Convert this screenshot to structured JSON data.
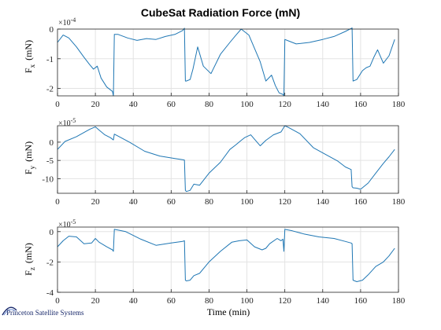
{
  "chart_data": {
    "type": "line",
    "title": "CubeSat Radiation Force (mN)",
    "xlabel": "Time (min)",
    "xlim": [
      0,
      180
    ],
    "xticks": [
      "0",
      "20",
      "40",
      "60",
      "80",
      "100",
      "120",
      "140",
      "160",
      "180"
    ],
    "color": "#1f77b4",
    "grid": true,
    "panels": [
      {
        "ylabel_main": "F",
        "ylabel_sub": "x",
        "ylabel_unit": "(mN)",
        "exponent_base": "×10",
        "exponent_power": "-4",
        "ylim": [
          -2.25,
          0
        ],
        "yticks": [
          0,
          -1,
          -2
        ],
        "ytick_labels": [
          "0",
          "-1",
          "-2"
        ],
        "x": [
          0,
          3,
          6,
          10,
          14,
          17,
          19,
          21,
          23,
          26,
          29,
          29.5,
          30,
          32,
          37,
          42,
          47,
          52,
          57,
          62,
          66,
          67,
          67.5,
          68,
          70,
          71.5,
          74,
          77,
          81,
          86,
          91,
          94,
          97,
          101,
          107,
          110,
          113,
          115,
          117,
          119,
          119.5,
          120,
          122,
          126,
          133,
          140,
          146,
          152,
          155,
          155.5,
          156,
          158,
          161,
          163,
          165,
          167,
          169,
          172,
          175,
          178
        ],
        "y": [
          -0.45,
          -0.2,
          -0.3,
          -0.6,
          -0.95,
          -1.2,
          -1.35,
          -1.25,
          -1.65,
          -1.95,
          -2.1,
          -2.25,
          -0.18,
          -0.18,
          -0.3,
          -0.38,
          -0.32,
          -0.35,
          -0.25,
          -0.18,
          -0.05,
          0.03,
          -1.75,
          -1.75,
          -1.7,
          -1.35,
          -0.6,
          -1.25,
          -1.5,
          -0.85,
          -0.45,
          -0.22,
          0,
          -0.2,
          -1.1,
          -1.75,
          -1.55,
          -1.9,
          -2.15,
          -2.2,
          -2.25,
          -0.35,
          -0.4,
          -0.5,
          -0.45,
          -0.35,
          -0.25,
          -0.08,
          0.02,
          0.04,
          -1.75,
          -1.7,
          -1.4,
          -1.3,
          -1.25,
          -0.95,
          -0.7,
          -1.15,
          -0.9,
          -0.35
        ]
      },
      {
        "ylabel_main": "F",
        "ylabel_sub": "y",
        "ylabel_unit": "(mN)",
        "exponent_base": "×10",
        "exponent_power": "-5",
        "ylim": [
          -14,
          4.5
        ],
        "yticks": [
          0,
          -5,
          -10
        ],
        "ytick_labels": [
          "0",
          "-5",
          "-10"
        ],
        "x": [
          0,
          4,
          10,
          17,
          20,
          22,
          25,
          28,
          29,
          29.5,
          30,
          38,
          46,
          54,
          62,
          66,
          67,
          67.5,
          68,
          70,
          72,
          75,
          80,
          86,
          91,
          94,
          97,
          99,
          102,
          104,
          107,
          110,
          114,
          118,
          120,
          122,
          128,
          135,
          142,
          148,
          152,
          155,
          155.5,
          156,
          158,
          160,
          164,
          168,
          172,
          175,
          178
        ],
        "y": [
          -2.0,
          0.2,
          1.5,
          3.5,
          4.2,
          3.3,
          2.0,
          1.2,
          0.8,
          0.6,
          2.2,
          0,
          -2.5,
          -3.8,
          -4.5,
          -4.8,
          -4.9,
          -13.2,
          -13.5,
          -13.2,
          -11.5,
          -11.8,
          -8.5,
          -5.5,
          -2.0,
          -0.8,
          0.5,
          1.3,
          2.0,
          0.8,
          -1.0,
          0.5,
          2.0,
          2.8,
          4.5,
          4.0,
          2.3,
          -1.5,
          -3.5,
          -5.2,
          -6.8,
          -7.5,
          -12.2,
          -12.5,
          -12.6,
          -12.9,
          -11.2,
          -8.5,
          -5.8,
          -4.0,
          -2.0
        ]
      },
      {
        "ylabel_main": "F",
        "ylabel_sub": "z",
        "ylabel_unit": "(mN)",
        "exponent_base": "×10",
        "exponent_power": "-5",
        "ylim": [
          -4,
          0.3
        ],
        "yticks": [
          0,
          -2,
          -4
        ],
        "ytick_labels": [
          "0",
          "-2",
          "-4"
        ],
        "x": [
          0,
          3,
          6,
          10,
          14,
          18,
          20,
          22,
          26,
          29,
          29.5,
          30,
          36,
          44,
          52,
          60,
          66,
          67,
          67.5,
          68,
          70,
          72,
          75,
          80,
          86,
          92,
          96,
          100,
          104,
          108,
          110,
          112,
          116,
          118,
          119,
          119.5,
          120,
          124,
          130,
          138,
          146,
          152,
          155,
          155.5,
          156,
          158,
          161,
          164,
          168,
          172,
          175,
          178
        ],
        "y": [
          -1.0,
          -0.6,
          -0.3,
          -0.35,
          -0.8,
          -0.75,
          -0.45,
          -0.7,
          -1.0,
          -1.2,
          -1.3,
          0.15,
          0,
          -0.5,
          -0.9,
          -0.75,
          -0.65,
          -0.6,
          -3.2,
          -3.25,
          -3.2,
          -2.9,
          -2.75,
          -2.0,
          -1.3,
          -0.7,
          -0.6,
          -0.55,
          -1.0,
          -1.2,
          -1.1,
          -0.8,
          -0.45,
          -0.6,
          -0.5,
          -1.3,
          0.15,
          0.05,
          -0.15,
          -0.35,
          -0.45,
          -0.65,
          -0.75,
          -0.8,
          -3.2,
          -3.3,
          -3.2,
          -2.85,
          -2.3,
          -2.0,
          -1.6,
          -1.1
        ]
      }
    ]
  },
  "footer": {
    "company": "Princeton Satellite Systems"
  }
}
